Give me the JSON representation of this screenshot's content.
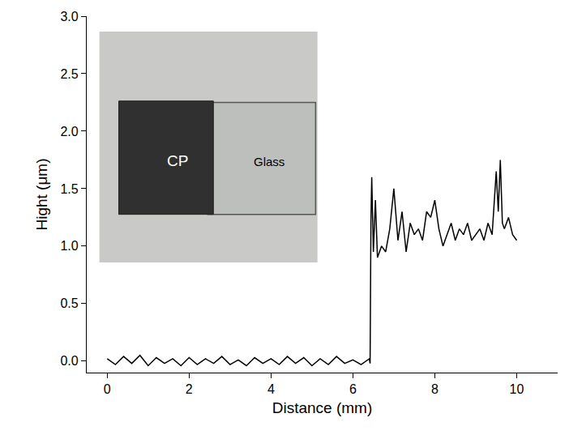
{
  "chart_data": {
    "type": "line",
    "x_label": "Distance (mm)",
    "y_label": "Hight (μm)",
    "color": "#000000",
    "grid": false,
    "annotations": [
      {
        "text": "CP"
      },
      {
        "text": "Glass"
      }
    ],
    "x": [
      0,
      0.2,
      0.4,
      0.6,
      0.8,
      1.0,
      1.2,
      1.4,
      1.6,
      1.8,
      2.0,
      2.2,
      2.4,
      2.6,
      2.8,
      3.0,
      3.2,
      3.4,
      3.6,
      3.8,
      4.0,
      4.2,
      4.4,
      4.6,
      4.8,
      5.0,
      5.2,
      5.4,
      5.6,
      5.8,
      6.0,
      6.2,
      6.4,
      6.42,
      6.44,
      6.46,
      6.5,
      6.55,
      6.6,
      6.7,
      6.8,
      6.9,
      7.0,
      7.1,
      7.2,
      7.3,
      7.4,
      7.5,
      7.6,
      7.7,
      7.8,
      7.9,
      8.0,
      8.1,
      8.2,
      8.3,
      8.4,
      8.5,
      8.6,
      8.7,
      8.8,
      8.9,
      9.0,
      9.1,
      9.2,
      9.3,
      9.4,
      9.5,
      9.55,
      9.6,
      9.65,
      9.7,
      9.8,
      9.9,
      10.0
    ],
    "values": [
      0.02,
      -0.03,
      0.04,
      -0.02,
      0.05,
      -0.04,
      0.03,
      -0.02,
      0.02,
      -0.04,
      0.03,
      -0.03,
      0.02,
      -0.02,
      0.04,
      -0.03,
      0.01,
      -0.04,
      0.03,
      -0.02,
      0.02,
      -0.03,
      0.04,
      -0.02,
      0.03,
      -0.04,
      0.02,
      -0.03,
      0.04,
      -0.02,
      0.01,
      -0.03,
      0.02,
      -0.02,
      1.2,
      1.6,
      0.95,
      1.4,
      0.9,
      1.0,
      0.95,
      1.15,
      1.5,
      1.05,
      1.3,
      0.95,
      1.2,
      1.1,
      1.15,
      1.05,
      1.3,
      1.25,
      1.4,
      1.15,
      1.0,
      1.1,
      1.2,
      1.05,
      1.15,
      1.1,
      1.2,
      1.05,
      1.1,
      1.15,
      1.05,
      1.2,
      1.1,
      1.65,
      1.3,
      1.75,
      1.2,
      1.15,
      1.25,
      1.1,
      1.05
    ],
    "xlim": [
      -0.5,
      11
    ],
    "xticks": [
      0,
      2,
      4,
      6,
      8,
      10
    ],
    "ylim": [
      -0.1,
      3.0
    ],
    "yticks": [
      {
        "value": 0,
        "label": "0.0"
      },
      {
        "value": 0.5,
        "label": "0.5"
      },
      {
        "value": 1,
        "label": "1.0"
      },
      {
        "value": 1.5,
        "label": "1.5"
      },
      {
        "value": 2,
        "label": "2.0"
      },
      {
        "value": 2.5,
        "label": "2.5"
      },
      {
        "value": 3,
        "label": "3.0"
      }
    ]
  }
}
